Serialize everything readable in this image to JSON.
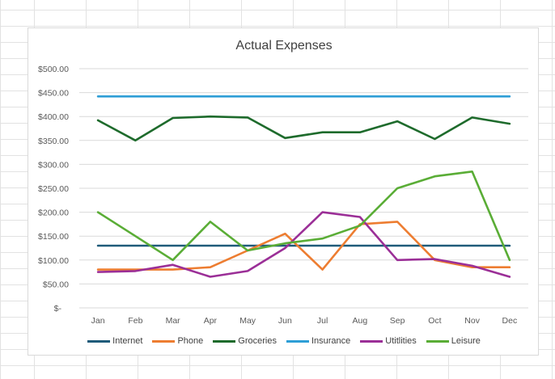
{
  "chart_data": {
    "type": "line",
    "title": "Actual Expenses",
    "categories": [
      "Jan",
      "Feb",
      "Mar",
      "Apr",
      "May",
      "Jun",
      "Jul",
      "Aug",
      "Sep",
      "Oct",
      "Nov",
      "Dec"
    ],
    "ylim": [
      0,
      500
    ],
    "yticks": [
      0,
      50,
      100,
      150,
      200,
      250,
      300,
      350,
      400,
      450,
      500
    ],
    "ytick_labels": [
      "$-",
      "$50.00",
      "$100.00",
      "$150.00",
      "$200.00",
      "$250.00",
      "$300.00",
      "$350.00",
      "$400.00",
      "$450.00",
      "$500.00"
    ],
    "grid": true,
    "legend_position": "bottom",
    "series": [
      {
        "name": "Internet",
        "color": "#1f5b7a",
        "values": [
          130,
          130,
          130,
          130,
          130,
          130,
          130,
          130,
          130,
          130,
          130,
          130
        ]
      },
      {
        "name": "Phone",
        "color": "#ed7d31",
        "values": [
          80,
          80,
          80,
          85,
          120,
          155,
          80,
          175,
          180,
          100,
          85,
          85
        ]
      },
      {
        "name": "Groceries",
        "color": "#1e6b2c",
        "values": [
          392,
          350,
          397,
          400,
          398,
          355,
          367,
          367,
          390,
          353,
          398,
          385
        ]
      },
      {
        "name": "Insurance",
        "color": "#2e9ed6",
        "values": [
          442,
          442,
          442,
          442,
          442,
          442,
          442,
          442,
          442,
          442,
          442,
          442
        ]
      },
      {
        "name": "Utitlities",
        "color": "#9b2f97",
        "values": [
          75,
          77,
          90,
          65,
          77,
          125,
          200,
          190,
          100,
          102,
          88,
          65
        ]
      },
      {
        "name": "Leisure",
        "color": "#5aad36",
        "values": [
          200,
          150,
          100,
          180,
          120,
          135,
          145,
          172,
          250,
          275,
          285,
          100
        ]
      }
    ]
  }
}
